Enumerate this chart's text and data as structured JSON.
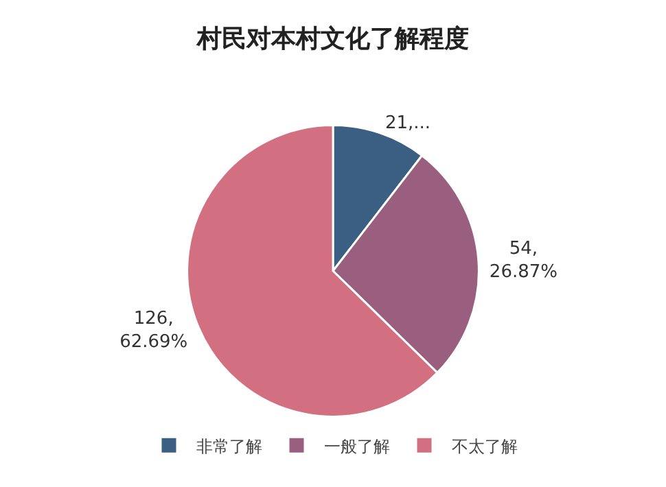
{
  "chart_data": {
    "type": "pie",
    "title": "村民对本村文化了解程度",
    "categories": [
      "非常了解",
      "一般了解",
      "不太了解"
    ],
    "values": [
      21,
      54,
      126
    ],
    "colors": [
      "#3b5f82",
      "#9a5f7e",
      "#d26f80"
    ],
    "value_labels": [
      "21,...",
      "54,\n26.87%",
      "126,\n62.69%"
    ],
    "legend": "bottom"
  }
}
